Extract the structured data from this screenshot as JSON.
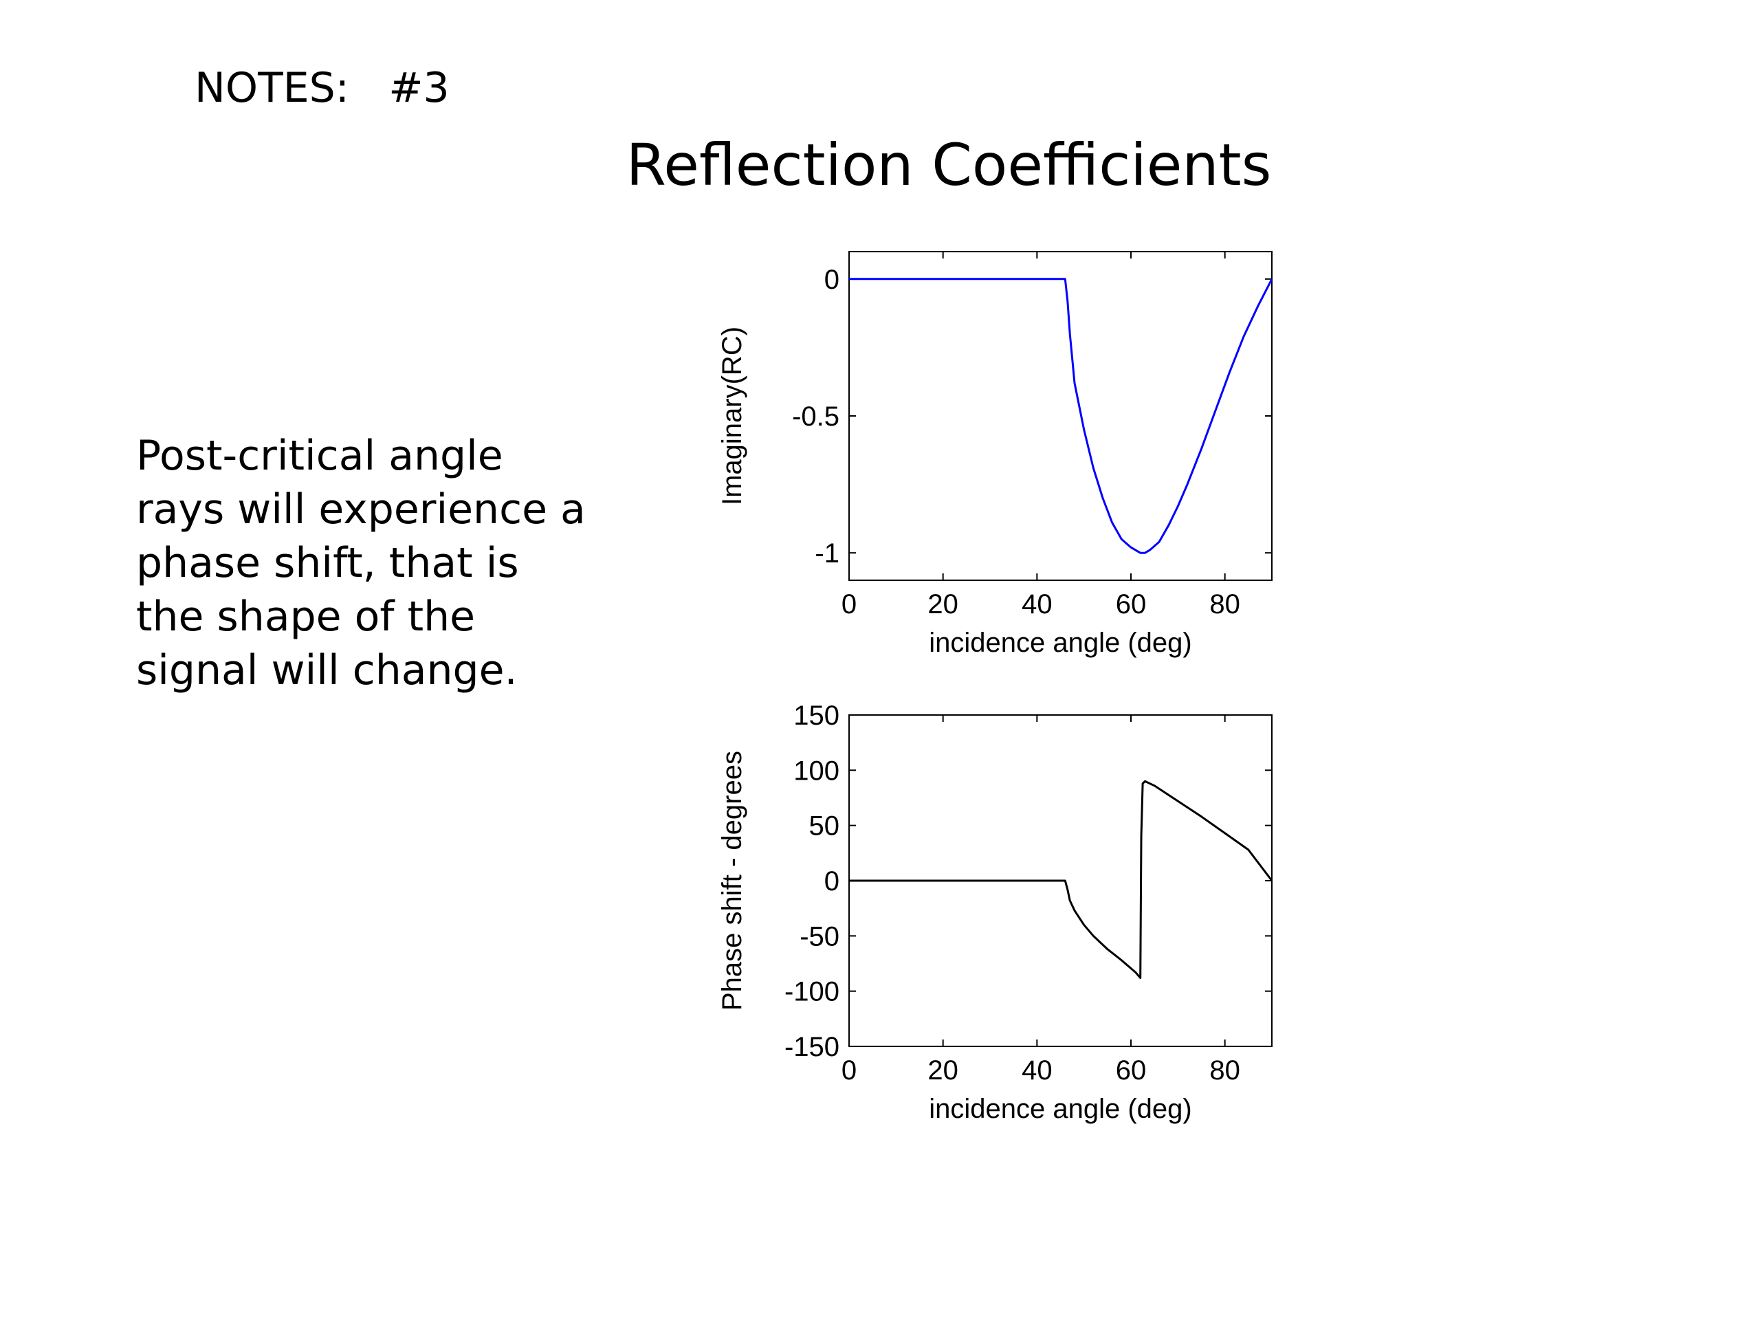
{
  "slide": {
    "notes_label": "NOTES:   #3",
    "title": "Reflection Coefficients",
    "body_lines": [
      "Post-critical angle",
      "rays will experience a",
      "phase shift, that is",
      "the shape of the",
      "signal will change."
    ]
  },
  "colors": {
    "imag_curve": "#0000ff",
    "phase_curve": "#000000",
    "axes": "#000000",
    "background": "#ffffff"
  },
  "chart_data": [
    {
      "type": "line",
      "title": "",
      "xlabel": "incidence angle (deg)",
      "ylabel": "Imaginary(RC)",
      "xlim": [
        0,
        90
      ],
      "ylim": [
        -1.1,
        0.1
      ],
      "xticks": [
        0,
        20,
        40,
        60,
        80
      ],
      "yticks": [
        0,
        -0.5,
        -1
      ],
      "xtick_labels": [
        "0",
        "20",
        "40",
        "60",
        "80"
      ],
      "ytick_labels": [
        "0",
        "-0.5",
        "-1"
      ],
      "grid": false,
      "series": [
        {
          "color": "#0000ff",
          "x": [
            0,
            10,
            20,
            30,
            40,
            46,
            46.5,
            47,
            48,
            50,
            52,
            54,
            56,
            58,
            60,
            62,
            63,
            64,
            66,
            68,
            70,
            72,
            75,
            78,
            81,
            84,
            87,
            90
          ],
          "y": [
            0,
            0,
            0,
            0,
            0,
            0,
            -0.08,
            -0.2,
            -0.38,
            -0.55,
            -0.69,
            -0.8,
            -0.89,
            -0.95,
            -0.98,
            -1.0,
            -1.0,
            -0.99,
            -0.96,
            -0.9,
            -0.83,
            -0.75,
            -0.62,
            -0.48,
            -0.34,
            -0.21,
            -0.1,
            0
          ]
        }
      ]
    },
    {
      "type": "line",
      "title": "",
      "xlabel": "incidence angle (deg)",
      "ylabel": "Phase shift - degrees",
      "xlim": [
        0,
        90
      ],
      "ylim": [
        -150,
        150
      ],
      "xticks": [
        0,
        20,
        40,
        60,
        80
      ],
      "yticks": [
        150,
        100,
        50,
        0,
        -50,
        -100,
        -150
      ],
      "xtick_labels": [
        "0",
        "20",
        "40",
        "60",
        "80"
      ],
      "ytick_labels": [
        "150",
        "100",
        "50",
        "0",
        "-50",
        "-100",
        "-150"
      ],
      "grid": false,
      "series": [
        {
          "color": "#000000",
          "x": [
            0,
            10,
            20,
            30,
            40,
            46,
            46.5,
            47,
            48,
            50,
            52,
            55,
            58,
            61,
            62,
            62.2,
            62.5,
            63,
            65,
            70,
            75,
            80,
            85,
            90
          ],
          "y": [
            0,
            0,
            0,
            0,
            0,
            0,
            -8,
            -18,
            -27,
            -40,
            -50,
            -62,
            -72,
            -83,
            -88,
            40,
            88,
            90,
            86,
            72,
            58,
            43,
            28,
            0
          ]
        }
      ]
    }
  ]
}
